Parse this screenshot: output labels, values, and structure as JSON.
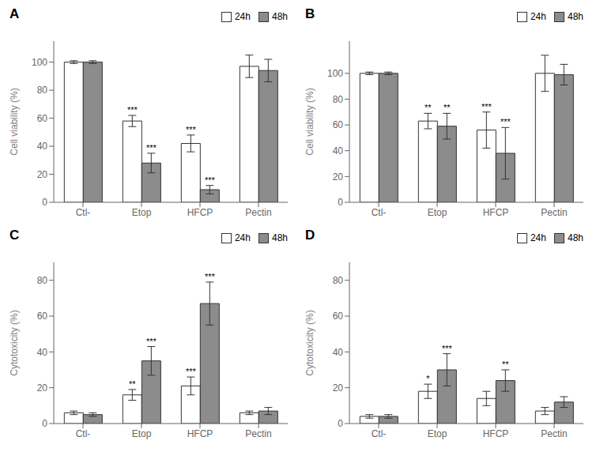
{
  "chart_data": [
    {
      "type": "bar",
      "title": "A",
      "ylabel": "Cell viability (%)",
      "categories": [
        "Ctl-",
        "Etop",
        "HFCP",
        "Pectin"
      ],
      "series": [
        {
          "name": "24h",
          "color": "#ffffff",
          "values": [
            100,
            58,
            42,
            97
          ],
          "errors": [
            1,
            4,
            6,
            8
          ],
          "annotations": [
            null,
            "***",
            "***",
            null
          ]
        },
        {
          "name": "48h",
          "color": "#8c8c8c",
          "values": [
            100,
            28,
            9,
            94
          ],
          "errors": [
            1,
            7,
            3,
            8
          ],
          "annotations": [
            null,
            "***",
            "***",
            null
          ]
        }
      ],
      "ylim": [
        0,
        115
      ],
      "yticks": [
        0,
        20,
        40,
        60,
        80,
        100
      ],
      "legend": "upper right"
    },
    {
      "type": "bar",
      "title": "B",
      "ylabel": "Cell viability (%)",
      "categories": [
        "Ctl-",
        "Etop",
        "HFCP",
        "Pectin"
      ],
      "series": [
        {
          "name": "24h",
          "color": "#ffffff",
          "values": [
            100,
            63,
            56,
            100
          ],
          "errors": [
            1,
            6,
            14,
            14
          ],
          "annotations": [
            null,
            "**",
            "***",
            null
          ]
        },
        {
          "name": "48h",
          "color": "#8c8c8c",
          "values": [
            100,
            59,
            38,
            99
          ],
          "errors": [
            1,
            10,
            20,
            8
          ],
          "annotations": [
            null,
            "**",
            "***",
            null
          ]
        }
      ],
      "ylim": [
        0,
        125
      ],
      "yticks": [
        0,
        20,
        40,
        60,
        80,
        100
      ],
      "legend": "upper right"
    },
    {
      "type": "bar",
      "title": "C",
      "ylabel": "Cytotoxicity (%)",
      "categories": [
        "Ctl-",
        "Etop",
        "HFCP",
        "Pectin"
      ],
      "series": [
        {
          "name": "24h",
          "color": "#ffffff",
          "values": [
            6,
            16,
            21,
            6
          ],
          "errors": [
            1,
            3,
            5,
            1
          ],
          "annotations": [
            null,
            "**",
            "***",
            null
          ]
        },
        {
          "name": "48h",
          "color": "#8c8c8c",
          "values": [
            5,
            35,
            67,
            7
          ],
          "errors": [
            1,
            8,
            12,
            2
          ],
          "annotations": [
            null,
            "***",
            "***",
            null
          ]
        }
      ],
      "ylim": [
        0,
        90
      ],
      "yticks": [
        0,
        20,
        40,
        60,
        80
      ],
      "legend": "upper right"
    },
    {
      "type": "bar",
      "title": "D",
      "ylabel": "Cytotoxicity (%)",
      "categories": [
        "Ctl-",
        "Etop",
        "HFCP",
        "Pectin"
      ],
      "series": [
        {
          "name": "24h",
          "color": "#ffffff",
          "values": [
            4,
            18,
            14,
            7
          ],
          "errors": [
            1,
            4,
            4,
            2
          ],
          "annotations": [
            null,
            "*",
            null,
            null
          ]
        },
        {
          "name": "48h",
          "color": "#8c8c8c",
          "values": [
            4,
            30,
            24,
            12
          ],
          "errors": [
            1,
            9,
            6,
            3
          ],
          "annotations": [
            null,
            "***",
            "**",
            null
          ]
        }
      ],
      "ylim": [
        0,
        90
      ],
      "yticks": [
        0,
        20,
        40,
        60,
        80
      ],
      "legend": "upper right"
    }
  ]
}
